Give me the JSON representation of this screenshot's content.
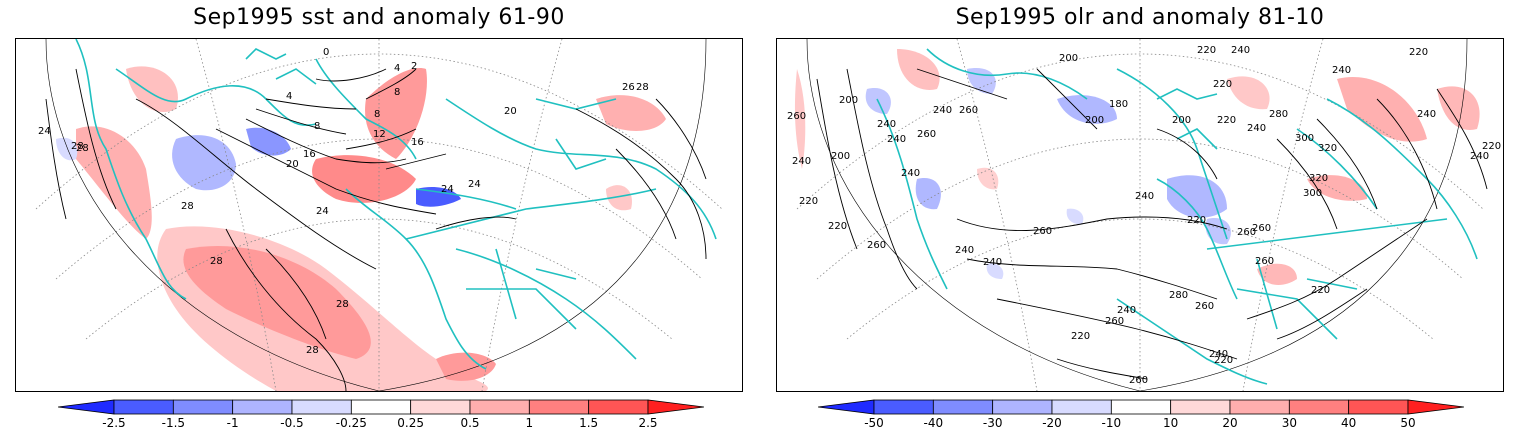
{
  "left_panel": {
    "title": "Sep1995 sst and anomaly 61-90",
    "contour_labels": [
      "24",
      "28",
      "28",
      "20",
      "16",
      "12",
      "8",
      "8",
      "4",
      "4",
      "2",
      "0",
      "20",
      "24",
      "24",
      "16",
      "8",
      "28",
      "24",
      "28",
      "28",
      "28",
      "20",
      "26",
      "28"
    ],
    "colorbar": {
      "ticks": [
        "-2.5",
        "-1.5",
        "-1",
        "-0.5",
        "-0.25",
        "0.25",
        "0.5",
        "1",
        "1.5",
        "2.5"
      ],
      "colors": [
        "#1f2bff",
        "#4a5cff",
        "#7f8cff",
        "#aeb4ff",
        "#d8dbff",
        "#ffffff",
        "#ffd9d9",
        "#ffaeae",
        "#ff8080",
        "#ff5555",
        "#ff2020"
      ]
    }
  },
  "right_panel": {
    "title": "Sep1995 olr and anomaly 81-10",
    "contour_labels": [
      "200",
      "200",
      "180",
      "200",
      "240",
      "220",
      "240",
      "280",
      "240",
      "220",
      "260",
      "240",
      "200",
      "240",
      "240",
      "260",
      "260",
      "220",
      "200",
      "220",
      "240",
      "300",
      "320",
      "220",
      "240",
      "220",
      "240",
      "320",
      "300",
      "240",
      "260",
      "260",
      "240",
      "260",
      "240",
      "260",
      "280",
      "260",
      "220",
      "240",
      "220",
      "220",
      "240",
      "220",
      "260",
      "240",
      "260",
      "260",
      "220"
    ],
    "colorbar": {
      "ticks": [
        "-50",
        "-40",
        "-30",
        "-20",
        "-10",
        "10",
        "20",
        "30",
        "40",
        "50"
      ],
      "colors": [
        "#1f2bff",
        "#4a5cff",
        "#7f8cff",
        "#aeb4ff",
        "#d8dbff",
        "#ffffff",
        "#ffd9d9",
        "#ffaeae",
        "#ff8080",
        "#ff5555",
        "#ff2020"
      ]
    }
  },
  "colors": {
    "coastline": "#20c0c0",
    "contour": "#000000",
    "grid": "#888888",
    "positive_light": "#ffd0d0",
    "positive_mid": "#ff9a9a",
    "negative_light": "#d8dbff",
    "negative_mid": "#8a96ff"
  }
}
